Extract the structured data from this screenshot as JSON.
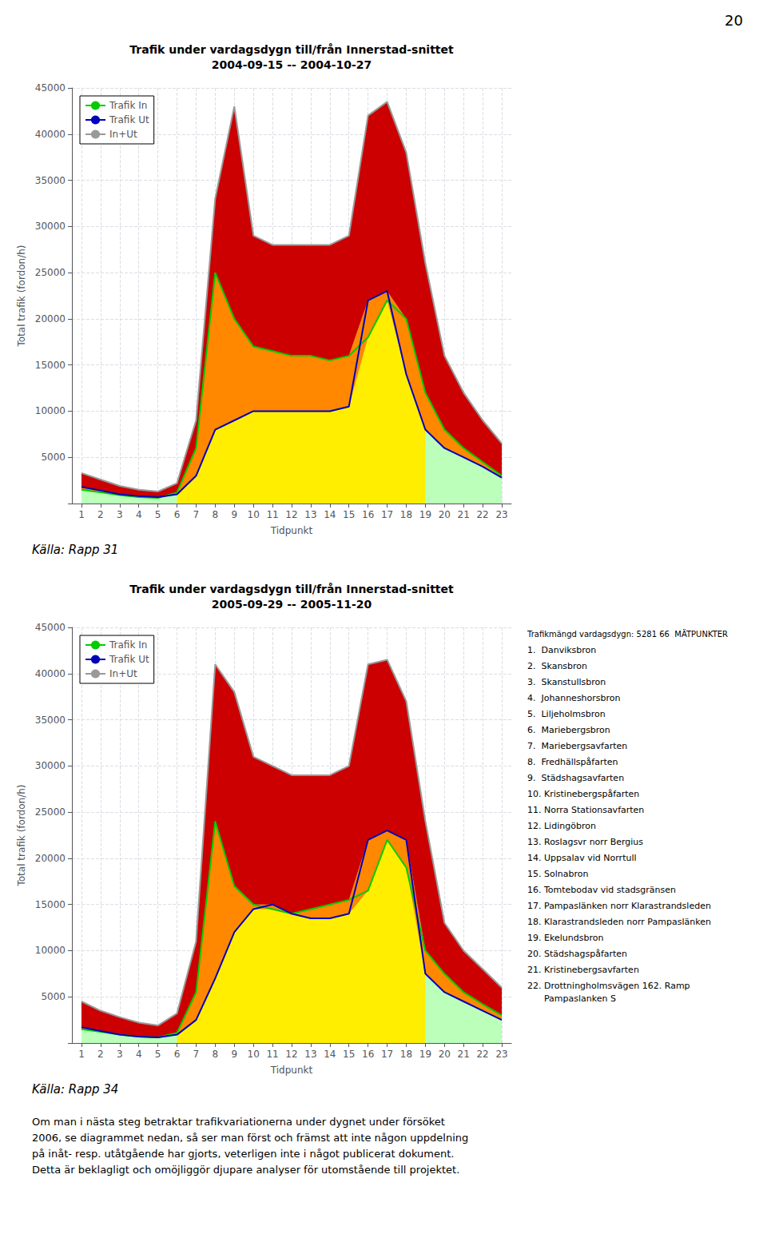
{
  "page_number": "20",
  "chart_data": [
    {
      "type": "area",
      "title": "Trafik under vardagsdygn till/från Innerstad-snittet\n2004-09-15 -- 2004-10-27",
      "xlabel": "Tidpunkt",
      "ylabel": "Total trafik (fordon/h)",
      "source": "Källa: Rapp 31",
      "x": [
        1,
        2,
        3,
        4,
        5,
        6,
        7,
        8,
        9,
        10,
        11,
        12,
        13,
        14,
        15,
        16,
        17,
        18,
        19,
        20,
        21,
        22,
        23
      ],
      "xlim": [
        0.5,
        23.5
      ],
      "xticks": [
        1,
        2,
        3,
        4,
        5,
        6,
        7,
        8,
        9,
        10,
        11,
        12,
        13,
        14,
        15,
        16,
        17,
        18,
        19,
        20,
        21,
        22,
        23
      ],
      "ylim": [
        0,
        45000
      ],
      "yticks": [
        {
          "value": 0,
          "label": null
        },
        5000,
        10000,
        15000,
        20000,
        25000,
        30000,
        35000,
        40000,
        45000
      ],
      "grid": true,
      "legend": "upper left",
      "series": [
        {
          "name": "Trafik In",
          "color": "#00cc00",
          "values": [
            1500,
            1200,
            900,
            700,
            600,
            1200,
            6000,
            25000,
            20000,
            17000,
            16500,
            16000,
            16000,
            15500,
            16000,
            18000,
            22000,
            20000,
            12000,
            8000,
            6000,
            4500,
            3000
          ]
        },
        {
          "name": "Trafik Ut",
          "color": "#0000bb",
          "values": [
            1800,
            1400,
            1000,
            800,
            700,
            1000,
            3000,
            8000,
            9000,
            10000,
            10000,
            10000,
            10000,
            10000,
            10500,
            22000,
            23000,
            14000,
            8000,
            6000,
            5000,
            4000,
            2800
          ]
        },
        {
          "name": "In+Ut",
          "color": "#999999",
          "values": [
            3300,
            2600,
            1900,
            1500,
            1300,
            2200,
            9000,
            33000,
            43000,
            29000,
            28000,
            28000,
            28000,
            28000,
            29000,
            42000,
            43500,
            38000,
            26000,
            16000,
            12000,
            9000,
            6500
          ]
        }
      ],
      "fills": [
        {
          "color": "#bbffbb",
          "lower": 0,
          "upper": [
            3300,
            2600,
            1900,
            1500,
            1300,
            2200,
            9000,
            33000,
            43000,
            29000,
            28000,
            28000,
            28000,
            28000,
            29000,
            42000,
            43500,
            38000,
            26000,
            16000,
            12000,
            9000,
            6500
          ]
        },
        {
          "color": "#ffee00",
          "lower": 0,
          "upper": [
            null,
            null,
            null,
            null,
            null,
            1000,
            3000,
            8000,
            9000,
            10000,
            10000,
            10000,
            10000,
            10000,
            10500,
            18000,
            22000,
            14000,
            8000,
            null,
            null,
            null,
            null
          ]
        },
        {
          "color": "#ff8800",
          "lower": [
            1500,
            1200,
            900,
            700,
            600,
            1000,
            3000,
            8000,
            9000,
            10000,
            10000,
            10000,
            10000,
            10000,
            10500,
            18000,
            22000,
            14000,
            8000,
            6000,
            5000,
            4000,
            2800
          ],
          "upper": [
            1800,
            1400,
            1000,
            800,
            700,
            1200,
            6000,
            25000,
            20000,
            17000,
            16500,
            16000,
            16000,
            15500,
            16000,
            22000,
            23000,
            20000,
            12000,
            8000,
            6000,
            4500,
            3000
          ]
        },
        {
          "color": "#cc0000",
          "lower": [
            1800,
            1400,
            1000,
            800,
            700,
            1200,
            6000,
            25000,
            20000,
            17000,
            16500,
            16000,
            16000,
            15500,
            16000,
            22000,
            23000,
            20000,
            12000,
            8000,
            6000,
            4500,
            3000
          ],
          "upper": [
            3300,
            2600,
            1900,
            1500,
            1300,
            2200,
            9000,
            33000,
            43000,
            29000,
            28000,
            28000,
            28000,
            28000,
            29000,
            42000,
            43500,
            38000,
            26000,
            16000,
            12000,
            9000,
            6500
          ]
        }
      ]
    },
    {
      "type": "area",
      "title": "Trafik under vardagsdygn till/från Innerstad-snittet\n2005-09-29 -- 2005-11-20",
      "xlabel": "Tidpunkt",
      "ylabel": "Total trafik (fordon/h)",
      "source": "Källa: Rapp 34",
      "annotations": [
        "Trafikmängd vardagsdygn: 5281 66  MÄTPUNKTER",
        "1.  Danviksbron",
        "2.  Skansbron",
        "3.  Skanstullsbron",
        "4.  Johanneshorsbron",
        "5.  Liljeholmsbron",
        "6.  Mariebergsbron",
        "7.  Mariebergsavfarten",
        "8.  Fredhällspåfarten",
        "9.  Städshagsavfarten",
        "10. Kristinebergspåfarten",
        "11. Norra Stationsavfarten",
        "12. Lidingöbron",
        "13. Roslagsvr norr Bergius",
        "14. Uppsalav vid Norrtull",
        "15. Solnabron",
        "16. Tomtebodav vid stadsgränsen",
        "17. Pampaslänken norr Klarastrandsleden",
        "18. Klarastrandsleden norr Pampaslänken",
        "19. Ekelundsbron",
        "20. Städshagspåfarten",
        "21. Kristinebergsavfarten",
        "22. Drottningholmsvägen 162. Ramp\n      Pampaslanken S"
      ],
      "x": [
        1,
        2,
        3,
        4,
        5,
        6,
        7,
        8,
        9,
        10,
        11,
        12,
        13,
        14,
        15,
        16,
        17,
        18,
        19,
        20,
        21,
        22,
        23
      ],
      "xlim": [
        0.5,
        23.5
      ],
      "xticks": [
        1,
        2,
        3,
        4,
        5,
        6,
        7,
        8,
        9,
        10,
        11,
        12,
        13,
        14,
        15,
        16,
        17,
        18,
        19,
        20,
        21,
        22,
        23
      ],
      "ylim": [
        0,
        45000
      ],
      "yticks": [
        {
          "value": 0,
          "label": null
        },
        5000,
        10000,
        15000,
        20000,
        25000,
        30000,
        35000,
        40000,
        45000
      ],
      "grid": true,
      "legend": "upper left",
      "series": [
        {
          "name": "Trafik In",
          "color": "#00cc00",
          "values": [
            1500,
            1200,
            900,
            700,
            600,
            1100,
            5500,
            24000,
            17000,
            15000,
            14500,
            14000,
            14500,
            15000,
            15500,
            16500,
            22000,
            19000,
            10000,
            7500,
            5500,
            4200,
            3000
          ]
        },
        {
          "name": "Trafik Ut",
          "color": "#0000bb",
          "values": [
            1700,
            1300,
            900,
            700,
            600,
            900,
            2500,
            7000,
            12000,
            14500,
            15000,
            14000,
            13500,
            13500,
            14000,
            22000,
            23000,
            22000,
            7500,
            5500,
            4500,
            3500,
            2500
          ]
        },
        {
          "name": "In+Ut",
          "color": "#999999",
          "values": [
            4500,
            3500,
            2800,
            2200,
            1900,
            3200,
            11000,
            41000,
            38000,
            31000,
            30000,
            29000,
            29000,
            29000,
            30000,
            41000,
            41500,
            37000,
            24000,
            13000,
            10000,
            8000,
            6000
          ]
        }
      ],
      "fills": [
        {
          "color": "#bbffbb",
          "lower": 0,
          "upper": [
            4500,
            3500,
            2800,
            2200,
            1900,
            3200,
            11000,
            41000,
            38000,
            31000,
            30000,
            29000,
            29000,
            29000,
            30000,
            41000,
            41500,
            37000,
            24000,
            13000,
            10000,
            8000,
            6000
          ]
        },
        {
          "color": "#ffee00",
          "lower": 0,
          "upper": [
            null,
            null,
            null,
            null,
            null,
            900,
            2500,
            7000,
            12000,
            14500,
            14500,
            14000,
            13500,
            13500,
            14000,
            16500,
            22000,
            19000,
            7500,
            null,
            null,
            null,
            null
          ]
        },
        {
          "color": "#ff8800",
          "lower": [
            1500,
            1200,
            900,
            700,
            600,
            900,
            2500,
            7000,
            12000,
            14500,
            14500,
            14000,
            13500,
            13500,
            14000,
            16500,
            22000,
            19000,
            7500,
            5500,
            4500,
            3500,
            2500
          ],
          "upper": [
            1700,
            1300,
            900,
            700,
            600,
            1100,
            5500,
            24000,
            17000,
            15000,
            15000,
            14000,
            14500,
            15000,
            15500,
            22000,
            23000,
            22000,
            10000,
            7500,
            5500,
            4200,
            3000
          ]
        },
        {
          "color": "#cc0000",
          "lower": [
            1700,
            1300,
            900,
            700,
            600,
            1100,
            5500,
            24000,
            17000,
            15000,
            15000,
            14000,
            14500,
            15000,
            15500,
            22000,
            23000,
            22000,
            10000,
            7500,
            5500,
            4200,
            3000
          ],
          "upper": [
            4500,
            3500,
            2800,
            2200,
            1900,
            3200,
            11000,
            41000,
            38000,
            31000,
            30000,
            29000,
            29000,
            29000,
            30000,
            41000,
            41500,
            37000,
            24000,
            13000,
            10000,
            8000,
            6000
          ]
        }
      ]
    }
  ],
  "bottom_text": "Om man i nästa steg betraktar trafikvariationerna under dygnet under försöket\n2006, se diagrammet nedan, så ser man först och främst att inte någon uppdelning\npå inåt- resp. utåtgående har gjorts, veterligen inte i något publicerat dokument.\nDetta är beklagligt och omöjliggör djupare analyser för utomstående till projektet."
}
